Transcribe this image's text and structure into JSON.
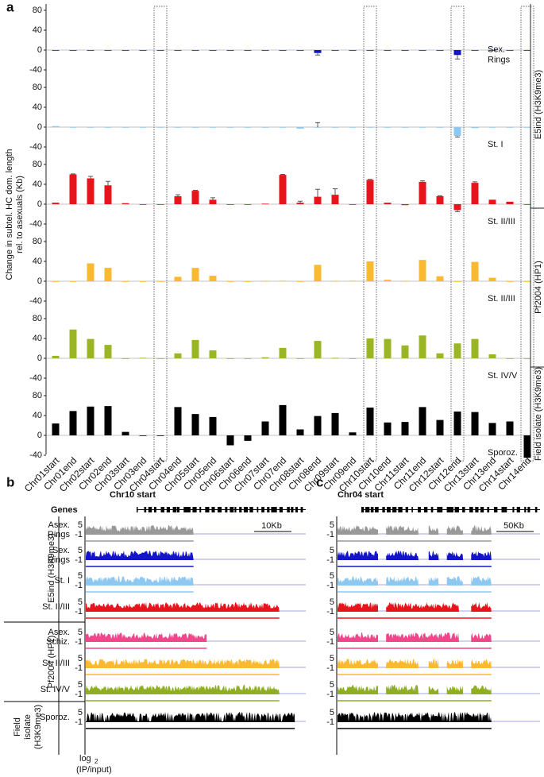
{
  "figure": {
    "panel_label": "a",
    "y_label": [
      "Change in subtel. HC dom. length",
      "rel. to asexuals (Kb)"
    ],
    "groups": [
      {
        "label": "E5ind (H3K9me3)"
      },
      {
        "label": "Pf2004 (HP1)"
      },
      {
        "label": "Field isolate (H3K9me3)"
      }
    ]
  },
  "chart_data": [
    {
      "type": "bar",
      "label": [
        "Sex.",
        "Rings"
      ],
      "color": "#1414c8",
      "ylim": [
        -40,
        80
      ],
      "yticks": [
        -40,
        0,
        40,
        80
      ],
      "values": [
        0,
        0,
        0,
        0,
        0,
        0,
        0,
        0,
        0,
        0,
        0,
        0,
        0,
        0,
        0,
        -6,
        0,
        0,
        0,
        0,
        0,
        0,
        0,
        -10,
        0,
        0,
        0,
        0
      ],
      "errors": [
        0,
        0,
        0,
        0,
        0,
        0,
        0,
        0,
        0,
        0,
        0,
        0,
        0,
        0,
        0,
        4,
        0,
        0,
        0,
        0,
        0,
        0,
        0,
        8,
        0,
        0,
        0,
        0
      ]
    },
    {
      "type": "bar",
      "label": [
        "St. I"
      ],
      "color": "#8ec8f0",
      "ylim": [
        -40,
        80
      ],
      "yticks": [
        -40,
        0,
        40,
        80
      ],
      "values": [
        2,
        0,
        0,
        0,
        0,
        0,
        0,
        0,
        0,
        0,
        0,
        0,
        0,
        0,
        -3,
        0,
        0,
        0,
        0,
        0,
        0,
        0,
        0,
        -18,
        -2,
        0,
        0,
        0
      ],
      "errors": [
        0,
        0,
        0,
        0,
        0,
        0,
        0,
        0,
        0,
        0,
        0,
        0,
        0,
        0,
        0,
        9,
        0,
        0,
        0,
        0,
        0,
        0,
        0,
        2,
        0,
        0,
        0,
        0
      ]
    },
    {
      "type": "bar",
      "label": [
        "St. II/III"
      ],
      "color": "#e8141c",
      "ylim": [
        -40,
        80
      ],
      "yticks": [
        -40,
        0,
        40,
        80
      ],
      "values": [
        3,
        60,
        52,
        38,
        2,
        0,
        0,
        16,
        27,
        9,
        -1,
        0,
        1,
        59,
        3,
        15,
        19,
        0,
        49,
        3,
        -2,
        45,
        16,
        -12,
        43,
        9,
        5,
        -1
      ],
      "errors": [
        0,
        1,
        4,
        8,
        0,
        0,
        0,
        3,
        1,
        4,
        0,
        0,
        0,
        1,
        3,
        15,
        12,
        0,
        1,
        0,
        0,
        2,
        1,
        3,
        2,
        0,
        0,
        0
      ]
    },
    {
      "type": "bar",
      "label": [
        "St. II/III"
      ],
      "color": "#f9b930",
      "ylim": [
        -40,
        80
      ],
      "yticks": [
        -40,
        0,
        40,
        80
      ],
      "values": [
        0,
        -1,
        36,
        27,
        0,
        0,
        0,
        9,
        27,
        11,
        0,
        0,
        1,
        1,
        0,
        33,
        1,
        1,
        40,
        3,
        1,
        43,
        10,
        0,
        39,
        7,
        0,
        0
      ]
    },
    {
      "type": "bar",
      "label": [
        "St. IV/V"
      ],
      "color": "#9ab525",
      "ylim": [
        -40,
        80
      ],
      "yticks": [
        -40,
        0,
        40,
        80
      ],
      "values": [
        5,
        58,
        39,
        27,
        0,
        1,
        0,
        10,
        37,
        16,
        0,
        0,
        2,
        21,
        0,
        35,
        1,
        -1,
        40,
        39,
        26,
        46,
        10,
        30,
        39,
        8,
        0,
        0
      ]
    },
    {
      "type": "bar",
      "label": [
        "Sporoz."
      ],
      "color": "#000000",
      "ylim": [
        -40,
        80
      ],
      "yticks": [
        -40,
        0,
        40,
        80
      ],
      "categories": [
        "Chr01start",
        "Chr01end",
        "Chr02start",
        "Chr02end",
        "Chr03start",
        "Chr03end",
        "Chr04start",
        "Chr04end",
        "Chr05start",
        "Chr05end",
        "Chr06start",
        "Chr06end",
        "Chr07start",
        "Chr07end",
        "Chr08start",
        "Chr08end",
        "Chr09start",
        "Chr09end",
        "Chr10start",
        "Chr10end",
        "Chr11start",
        "Chr11end",
        "Chr12start",
        "Chr12end",
        "Chr13start",
        "Chr13end",
        "Chr14start",
        "Chr14end"
      ],
      "values": [
        24,
        49,
        58,
        59,
        7,
        0,
        0,
        57,
        43,
        37,
        -20,
        -11,
        28,
        61,
        12,
        39,
        45,
        6,
        56,
        26,
        27,
        57,
        31,
        48,
        47,
        25,
        28,
        -45
      ]
    }
  ],
  "browser": {
    "genes_label": "Genes",
    "track_yticks": [
      5,
      -1
    ],
    "panels": [
      {
        "label": "b",
        "title": "Chr10 start",
        "scale": "10Kb"
      },
      {
        "label": "c",
        "title": "Chr04 start",
        "scale": "50Kb"
      }
    ],
    "tracks": [
      {
        "label": [
          "Asex.",
          "Rings"
        ],
        "color": "#999999"
      },
      {
        "label": [
          "Sex.",
          "Rings"
        ],
        "color": "#1414c8"
      },
      {
        "label": [
          "St. I"
        ],
        "color": "#8ec8f0"
      },
      {
        "label": [
          "St. II/III"
        ],
        "color": "#e8141c"
      },
      {
        "label": [
          "Asex.",
          "Schiz."
        ],
        "color": "#f0468c"
      },
      {
        "label": [
          "St. II/III"
        ],
        "color": "#f9b930"
      },
      {
        "label": [
          "St. IV/V"
        ],
        "color": "#8fae23"
      },
      {
        "label": [
          "Sporoz."
        ],
        "color": "#000000"
      }
    ],
    "groups": [
      {
        "label": [
          "E5ind (H3K9me3)"
        ]
      },
      {
        "label": [
          "Pf2004 (HP1)"
        ]
      },
      {
        "label": [
          "Field",
          "isolate",
          "(H3K9me3)"
        ]
      }
    ],
    "footer": {
      "log": "log",
      "sub": "2",
      "rest": "(IP/input)"
    }
  }
}
